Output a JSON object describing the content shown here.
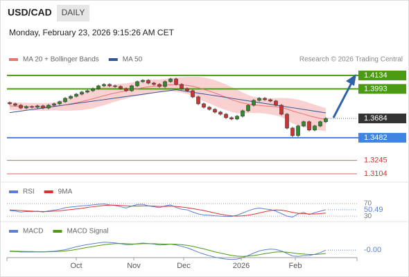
{
  "chart_data": {
    "type": "candlestick",
    "title": "USD/CAD",
    "badge": "DAILY",
    "subtitle": "Monday, February 23, 2026 9:15:26 AM CET",
    "source": "Research © 2026 Trading Central",
    "ylim": [
      1.3039,
      1.4235
    ],
    "candles": {
      "up_color": "#2e8b2e",
      "down_color": "#cc3333",
      "open": [
        1.385,
        1.3837,
        1.3822,
        1.3793,
        1.3808,
        1.3801,
        1.3815,
        1.3793,
        1.3822,
        1.3837,
        1.3859,
        1.3895,
        1.3916,
        1.3938,
        1.396,
        1.3974,
        1.3996,
        1.4025,
        1.404,
        1.4025,
        1.4018,
        1.3996,
        1.3974,
        1.4025,
        1.4069,
        1.4083,
        1.4054,
        1.404,
        1.4018,
        1.4069,
        1.4097,
        1.404,
        1.3996,
        1.3974,
        1.3909,
        1.3837,
        1.3801,
        1.3779,
        1.375,
        1.3728,
        1.3692,
        1.3678,
        1.3707,
        1.3764,
        1.3822,
        1.3873,
        1.3895,
        1.388,
        1.3866,
        1.3822,
        1.3728,
        1.3583,
        1.3504,
        1.3605,
        1.3649,
        1.3562,
        1.3605,
        1.3649
      ],
      "high": [
        1.3862,
        1.3849,
        1.3834,
        1.382,
        1.382,
        1.3827,
        1.3827,
        1.3834,
        1.3849,
        1.3871,
        1.3907,
        1.3928,
        1.395,
        1.3972,
        1.3986,
        1.4008,
        1.4037,
        1.4052,
        1.4052,
        1.4037,
        1.403,
        1.4008,
        1.4037,
        1.4081,
        1.4095,
        1.4095,
        1.4066,
        1.4052,
        1.4081,
        1.4109,
        1.4109,
        1.4052,
        1.4008,
        1.3986,
        1.3921,
        1.3849,
        1.3813,
        1.3791,
        1.3762,
        1.374,
        1.3704,
        1.3719,
        1.3776,
        1.3834,
        1.3885,
        1.3907,
        1.3907,
        1.3892,
        1.3878,
        1.3834,
        1.374,
        1.3595,
        1.3617,
        1.3661,
        1.3661,
        1.3617,
        1.3661,
        1.3696
      ],
      "low": [
        1.3825,
        1.381,
        1.3781,
        1.3781,
        1.3789,
        1.3789,
        1.3781,
        1.3781,
        1.381,
        1.3825,
        1.3847,
        1.3883,
        1.3904,
        1.3926,
        1.3948,
        1.3962,
        1.3984,
        1.4013,
        1.4013,
        1.4006,
        1.3984,
        1.3962,
        1.3962,
        1.4013,
        1.4057,
        1.4042,
        1.4028,
        1.4006,
        1.4006,
        1.4057,
        1.4028,
        1.3984,
        1.3962,
        1.3897,
        1.3825,
        1.3789,
        1.3767,
        1.3738,
        1.3716,
        1.368,
        1.3666,
        1.3666,
        1.3695,
        1.3752,
        1.381,
        1.3861,
        1.3868,
        1.3854,
        1.381,
        1.3716,
        1.3571,
        1.3492,
        1.3492,
        1.3593,
        1.355,
        1.355,
        1.3593,
        1.3637
      ],
      "close": [
        1.3837,
        1.3822,
        1.3793,
        1.3808,
        1.3801,
        1.3815,
        1.3793,
        1.3822,
        1.3837,
        1.3859,
        1.3895,
        1.3916,
        1.3938,
        1.396,
        1.3974,
        1.3996,
        1.4025,
        1.404,
        1.4025,
        1.4018,
        1.3996,
        1.3974,
        1.4025,
        1.4069,
        1.4083,
        1.4054,
        1.404,
        1.4018,
        1.4069,
        1.4097,
        1.404,
        1.3996,
        1.3974,
        1.3909,
        1.3837,
        1.3801,
        1.3779,
        1.375,
        1.3728,
        1.3692,
        1.3678,
        1.3707,
        1.3764,
        1.3822,
        1.3873,
        1.3895,
        1.388,
        1.3866,
        1.3822,
        1.3728,
        1.3583,
        1.3504,
        1.3605,
        1.3649,
        1.3562,
        1.3605,
        1.3649,
        1.3684
      ]
    },
    "series": [
      {
        "name": "MA 20 + Bollinger Bands",
        "color": "#f07070",
        "band_color": "#f9c6c6",
        "values": [
          1.3815,
          1.3813,
          1.381,
          1.3808,
          1.3806,
          1.3806,
          1.3805,
          1.3806,
          1.381,
          1.3816,
          1.3825,
          1.3836,
          1.3848,
          1.3861,
          1.3875,
          1.389,
          1.3906,
          1.3922,
          1.3937,
          1.395,
          1.3962,
          1.3972,
          1.3984,
          1.3995,
          1.4006,
          1.4015,
          1.4022,
          1.4027,
          1.4032,
          1.4037,
          1.4038,
          1.4035,
          1.403,
          1.402,
          1.4005,
          1.3988,
          1.397,
          1.395,
          1.3928,
          1.3905,
          1.3882,
          1.3862,
          1.3846,
          1.3834,
          1.3826,
          1.382,
          1.3815,
          1.3811,
          1.3806,
          1.3798,
          1.3782,
          1.3762,
          1.3745,
          1.373,
          1.3712,
          1.3697,
          1.3684,
          1.3672
        ],
        "upper": [
          1.3855,
          1.3853,
          1.385,
          1.3848,
          1.3846,
          1.3846,
          1.3845,
          1.3846,
          1.385,
          1.3866,
          1.3885,
          1.3906,
          1.3928,
          1.3951,
          1.397,
          1.399,
          1.4006,
          1.4022,
          1.4032,
          1.404,
          1.4047,
          1.4052,
          1.4059,
          1.407,
          1.4086,
          1.409,
          1.4092,
          1.4092,
          1.4097,
          1.4107,
          1.4113,
          1.4115,
          1.412,
          1.412,
          1.412,
          1.4113,
          1.41,
          1.4085,
          1.4063,
          1.404,
          1.4012,
          1.3987,
          1.3956,
          1.3929,
          1.3911,
          1.39,
          1.3895,
          1.3896,
          1.3896,
          1.3898,
          1.3897,
          1.3892,
          1.388,
          1.3865,
          1.3847,
          1.3827,
          1.3809,
          1.3792
        ],
        "lower": [
          1.3775,
          1.3773,
          1.377,
          1.3768,
          1.3766,
          1.3766,
          1.3765,
          1.3766,
          1.377,
          1.3766,
          1.3765,
          1.3766,
          1.3768,
          1.3771,
          1.378,
          1.379,
          1.3806,
          1.3822,
          1.3842,
          1.386,
          1.3877,
          1.3892,
          1.3909,
          1.392,
          1.3926,
          1.394,
          1.3952,
          1.3962,
          1.3967,
          1.3967,
          1.3963,
          1.3955,
          1.394,
          1.392,
          1.389,
          1.3863,
          1.384,
          1.3815,
          1.3793,
          1.377,
          1.3752,
          1.3737,
          1.3736,
          1.3739,
          1.3741,
          1.374,
          1.3735,
          1.3726,
          1.3716,
          1.3698,
          1.3667,
          1.3632,
          1.361,
          1.3595,
          1.3577,
          1.3567,
          1.3559,
          1.3552
        ]
      },
      {
        "name": "MA 50",
        "color": "#2f5597",
        "values": [
          1.3745,
          1.3753,
          1.3761,
          1.3769,
          1.3777,
          1.3785,
          1.3793,
          1.3801,
          1.3809,
          1.3817,
          1.3825,
          1.3833,
          1.3841,
          1.3849,
          1.3857,
          1.3865,
          1.3873,
          1.3881,
          1.3889,
          1.3897,
          1.3905,
          1.3913,
          1.3921,
          1.3929,
          1.3937,
          1.3945,
          1.3953,
          1.3961,
          1.3969,
          1.3977,
          1.3985,
          1.3976,
          1.3967,
          1.3958,
          1.3949,
          1.394,
          1.3931,
          1.3922,
          1.3913,
          1.3904,
          1.3895,
          1.3886,
          1.3877,
          1.3868,
          1.3859,
          1.385,
          1.3841,
          1.3832,
          1.3823,
          1.3814,
          1.3805,
          1.3796,
          1.3787,
          1.3778,
          1.3769,
          1.376,
          1.3751,
          1.3742
        ]
      }
    ],
    "levels": [
      {
        "value": 1.4134,
        "color": "#4a9a12",
        "style": "box"
      },
      {
        "value": 1.3993,
        "color": "#4a9a12",
        "style": "box"
      },
      {
        "value": 1.3684,
        "color": "#333333",
        "style": "current"
      },
      {
        "value": 1.3482,
        "color": "#3d85e0",
        "style": "box"
      },
      {
        "value": 1.3245,
        "color": "#e06060",
        "style": "text"
      },
      {
        "value": 1.3104,
        "color": "#e06060",
        "style": "text"
      }
    ],
    "xlabels": [
      "Oct",
      "Nov",
      "Dec",
      "2026",
      "Feb"
    ],
    "rsi": {
      "ylim": [
        17,
        90
      ],
      "yticks": [
        70,
        30
      ],
      "series": [
        {
          "name": "RSI",
          "color": "#5b7fd6",
          "values": [
            48,
            46,
            43,
            45,
            44,
            46,
            43,
            47,
            49,
            52,
            57,
            59,
            61,
            63,
            64,
            66,
            68,
            69,
            66,
            64,
            60,
            56,
            62,
            67,
            68,
            63,
            60,
            57,
            63,
            66,
            58,
            52,
            50,
            43,
            37,
            34,
            33,
            31,
            30,
            29,
            29,
            33,
            40,
            47,
            53,
            56,
            53,
            51,
            46,
            38,
            30,
            27,
            37,
            42,
            35,
            41,
            46,
            50.49
          ]
        },
        {
          "name": "9MA",
          "color": "#dd3030",
          "values": [
            50,
            49,
            48,
            47,
            46,
            45,
            45,
            45,
            46,
            47,
            49,
            51,
            53,
            55,
            58,
            60,
            62,
            64,
            65,
            65,
            64,
            63,
            62,
            62,
            63,
            63,
            62,
            61,
            61,
            62,
            61,
            59,
            57,
            54,
            51,
            48,
            44,
            40,
            36,
            33,
            31,
            30,
            31,
            33,
            36,
            40,
            44,
            48,
            50,
            49,
            46,
            42,
            39,
            38,
            37,
            37,
            38,
            40
          ]
        }
      ]
    },
    "macd": {
      "ylim": [
        -0.006,
        0.006
      ],
      "last_value_label": "-0.00",
      "series": [
        {
          "name": "MACD",
          "color": "#5b7fd6",
          "values": [
            -0.001,
            -0.0011,
            -0.0013,
            -0.0013,
            -0.0013,
            -0.0012,
            -0.0013,
            -0.0011,
            -0.0009,
            -0.0006,
            -0.0002,
            0.0005,
            0.0012,
            0.0018,
            0.0023,
            0.0027,
            0.0031,
            0.0034,
            0.0033,
            0.0031,
            0.0027,
            0.0022,
            0.0023,
            0.0027,
            0.003,
            0.0028,
            0.0025,
            0.0021,
            0.0022,
            0.0025,
            0.0021,
            0.0014,
            0.0007,
            -0.0003,
            -0.0014,
            -0.0023,
            -0.0031,
            -0.0038,
            -0.0043,
            -0.0047,
            -0.0049,
            -0.0047,
            -0.004,
            -0.003,
            -0.0018,
            -0.0008,
            -0.0002,
            0.0001,
            -0.0001,
            -0.0008,
            -0.002,
            -0.0032,
            -0.0034,
            -0.0031,
            -0.003,
            -0.0024,
            -0.0016,
            -0.0004
          ]
        },
        {
          "name": "MACD Signal",
          "color": "#4a9a12",
          "values": [
            -0.0008,
            -0.0009,
            -0.001,
            -0.0011,
            -0.0011,
            -0.0012,
            -0.0012,
            -0.0012,
            -0.0011,
            -0.001,
            -0.0008,
            -0.0005,
            -0.0001,
            0.0004,
            0.0009,
            0.0013,
            0.0018,
            0.0022,
            0.0025,
            0.0027,
            0.0028,
            0.0027,
            0.0026,
            0.0026,
            0.0027,
            0.0027,
            0.0027,
            0.0026,
            0.0025,
            0.0025,
            0.0024,
            0.0022,
            0.0019,
            0.0014,
            0.0008,
            0.0002,
            -0.0005,
            -0.0012,
            -0.0018,
            -0.0024,
            -0.0029,
            -0.0033,
            -0.0034,
            -0.0033,
            -0.003,
            -0.0026,
            -0.0021,
            -0.0017,
            -0.0013,
            -0.0012,
            -0.0014,
            -0.0017,
            -0.0021,
            -0.0023,
            -0.0025,
            -0.0025,
            -0.0023,
            -0.002
          ]
        }
      ]
    }
  }
}
